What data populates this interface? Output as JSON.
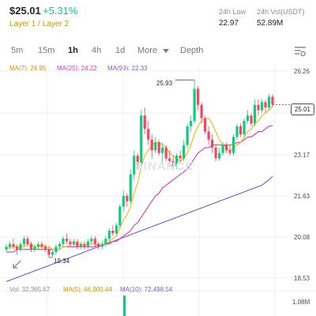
{
  "header": {
    "price": "$25.01",
    "change": "+5.31%",
    "tags": "Layer 1 / Layer 2",
    "low_label": "24h Low",
    "low_value": "22.97",
    "vol_label": "24h Vol(USDT)",
    "vol_value": "52.89M"
  },
  "tabs": {
    "items": [
      "5m",
      "15m",
      "1h",
      "4h",
      "1d",
      "More",
      "Depth"
    ],
    "active": "1h"
  },
  "ma_legend": {
    "ma7": "MA(7): 24.95",
    "ma25": "MA(25): 24.22",
    "ma99": "MA(99): 22.33"
  },
  "price_axis": [
    "26.26",
    "23.17",
    "21.63",
    "20.08",
    "18.53"
  ],
  "current_price": "25.01",
  "high_marker": "25.93",
  "low_marker": "19.34",
  "watermark": "BINANCE",
  "volume_legend": {
    "vol": "Vol: 32,365.67",
    "ma5": "MA(5): 66,900.44",
    "ma10": "MA(10): 72,498.54"
  },
  "volume_axis": "1.08M",
  "colors": {
    "up": "#0ecb81",
    "down": "#f6465d",
    "ma7": "#f0b90b",
    "ma25": "#d63bb5",
    "ma99": "#7b5cc4",
    "muted": "#848e9c"
  },
  "chart_data": {
    "type": "candlestick",
    "y_axis_ticks": [
      26.26,
      23.17,
      21.63,
      20.08,
      18.53
    ],
    "ylim": [
      18.0,
      26.6
    ],
    "candles": [
      [
        19.6,
        19.8,
        19.5,
        19.7
      ],
      [
        19.7,
        19.9,
        19.6,
        19.8
      ],
      [
        19.8,
        20.0,
        19.6,
        19.7
      ],
      [
        19.7,
        19.8,
        19.4,
        19.6
      ],
      [
        19.6,
        19.9,
        19.5,
        19.8
      ],
      [
        19.8,
        20.1,
        19.7,
        20.0
      ],
      [
        20.0,
        20.1,
        19.7,
        19.8
      ],
      [
        19.8,
        19.9,
        19.5,
        19.6
      ],
      [
        19.6,
        19.8,
        19.5,
        19.7
      ],
      [
        19.7,
        19.9,
        19.6,
        19.8
      ],
      [
        19.8,
        19.9,
        19.6,
        19.7
      ],
      [
        19.7,
        19.8,
        19.5,
        19.6
      ],
      [
        19.6,
        19.7,
        19.3,
        19.4
      ],
      [
        19.4,
        19.6,
        19.3,
        19.5
      ],
      [
        19.5,
        19.8,
        19.4,
        19.7
      ],
      [
        19.7,
        19.9,
        19.6,
        19.8
      ],
      [
        19.8,
        20.1,
        19.7,
        20.0
      ],
      [
        20.0,
        20.2,
        19.8,
        19.9
      ],
      [
        19.9,
        20.0,
        19.7,
        19.8
      ],
      [
        19.8,
        20.0,
        19.7,
        19.9
      ],
      [
        19.9,
        20.0,
        19.6,
        19.7
      ],
      [
        19.7,
        19.9,
        19.6,
        19.8
      ],
      [
        19.8,
        19.9,
        19.6,
        19.7
      ],
      [
        19.7,
        20.0,
        19.6,
        19.9
      ],
      [
        19.9,
        20.1,
        19.8,
        20.0
      ],
      [
        20.0,
        20.1,
        19.7,
        19.8
      ],
      [
        19.8,
        19.9,
        19.6,
        19.7
      ],
      [
        19.7,
        19.9,
        19.6,
        19.8
      ],
      [
        19.8,
        20.1,
        19.7,
        20.0
      ],
      [
        20.0,
        20.4,
        19.9,
        20.3
      ],
      [
        20.3,
        20.5,
        20.1,
        20.2
      ],
      [
        20.2,
        20.6,
        20.1,
        20.5
      ],
      [
        20.5,
        21.3,
        20.4,
        21.2
      ],
      [
        21.2,
        21.8,
        21.0,
        21.6
      ],
      [
        21.6,
        21.7,
        21.2,
        21.4
      ],
      [
        21.4,
        22.6,
        21.3,
        22.4
      ],
      [
        22.4,
        23.3,
        22.2,
        23.1
      ],
      [
        23.1,
        23.2,
        22.6,
        22.8
      ],
      [
        22.8,
        24.8,
        22.7,
        24.6
      ],
      [
        24.6,
        24.9,
        23.9,
        24.1
      ],
      [
        24.1,
        24.4,
        23.5,
        23.7
      ],
      [
        23.7,
        23.9,
        23.0,
        23.3
      ],
      [
        23.3,
        23.8,
        23.2,
        23.6
      ],
      [
        23.6,
        23.7,
        23.1,
        23.2
      ],
      [
        23.2,
        23.6,
        22.8,
        23.4
      ],
      [
        23.4,
        23.5,
        22.9,
        23.0
      ],
      [
        23.0,
        23.3,
        22.7,
        22.9
      ],
      [
        22.9,
        23.1,
        22.6,
        22.7
      ],
      [
        22.7,
        23.2,
        22.6,
        23.1
      ],
      [
        23.1,
        23.3,
        22.8,
        23.0
      ],
      [
        23.0,
        23.7,
        22.9,
        23.5
      ],
      [
        23.5,
        24.3,
        23.4,
        24.2
      ],
      [
        24.2,
        24.6,
        24.0,
        24.4
      ],
      [
        24.4,
        25.93,
        24.3,
        25.6
      ],
      [
        25.6,
        25.7,
        24.8,
        25.0
      ],
      [
        25.0,
        25.1,
        24.3,
        24.5
      ],
      [
        24.5,
        24.6,
        23.9,
        24.0
      ],
      [
        24.0,
        24.2,
        23.5,
        23.7
      ],
      [
        23.7,
        23.9,
        23.2,
        23.4
      ],
      [
        23.4,
        23.5,
        22.9,
        23.0
      ],
      [
        23.0,
        23.4,
        22.9,
        23.2
      ],
      [
        23.2,
        23.6,
        23.1,
        23.5
      ],
      [
        23.5,
        23.6,
        23.2,
        23.3
      ],
      [
        23.3,
        23.5,
        23.1,
        23.2
      ],
      [
        23.2,
        23.9,
        23.1,
        23.8
      ],
      [
        23.8,
        24.3,
        23.7,
        24.2
      ],
      [
        24.2,
        24.3,
        23.8,
        23.9
      ],
      [
        23.9,
        24.5,
        23.8,
        24.4
      ],
      [
        24.4,
        24.8,
        24.3,
        24.6
      ],
      [
        24.6,
        24.7,
        24.2,
        24.3
      ],
      [
        24.3,
        25.2,
        24.2,
        25.0
      ],
      [
        25.0,
        25.2,
        24.6,
        24.8
      ],
      [
        24.8,
        25.2,
        24.7,
        25.1
      ],
      [
        25.1,
        25.2,
        24.7,
        24.9
      ],
      [
        24.9,
        25.4,
        24.8,
        25.3
      ],
      [
        25.3,
        25.4,
        24.9,
        25.01
      ]
    ],
    "ma7": [
      19.6,
      19.7,
      19.7,
      19.7,
      19.7,
      19.7,
      19.8,
      19.8,
      19.7,
      19.7,
      19.7,
      19.7,
      19.7,
      19.6,
      19.6,
      19.6,
      19.7,
      19.7,
      19.8,
      19.8,
      19.8,
      19.8,
      19.8,
      19.8,
      19.8,
      19.8,
      19.8,
      19.8,
      19.8,
      19.9,
      20.0,
      20.1,
      20.4,
      20.7,
      20.9,
      21.2,
      21.7,
      22.1,
      22.7,
      23.1,
      23.3,
      23.5,
      23.6,
      23.6,
      23.5,
      23.4,
      23.2,
      23.1,
      23.0,
      22.9,
      23.0,
      23.2,
      23.5,
      23.9,
      24.2,
      24.4,
      24.5,
      24.5,
      24.3,
      24.0,
      23.7,
      23.5,
      23.4,
      23.3,
      23.4,
      23.5,
      23.6,
      23.8,
      24.0,
      24.1,
      24.3,
      24.4,
      24.6,
      24.7,
      24.8,
      24.95
    ],
    "ma25": [
      19.5,
      19.5,
      19.5,
      19.6,
      19.6,
      19.6,
      19.6,
      19.6,
      19.6,
      19.6,
      19.6,
      19.6,
      19.6,
      19.6,
      19.6,
      19.6,
      19.7,
      19.7,
      19.7,
      19.7,
      19.7,
      19.7,
      19.7,
      19.7,
      19.7,
      19.7,
      19.8,
      19.8,
      19.8,
      19.8,
      19.9,
      19.9,
      20.0,
      20.1,
      20.2,
      20.3,
      20.5,
      20.6,
      20.8,
      21.0,
      21.2,
      21.4,
      21.6,
      21.7,
      21.9,
      22.0,
      22.1,
      22.2,
      22.3,
      22.4,
      22.5,
      22.6,
      22.8,
      23.0,
      23.2,
      23.3,
      23.4,
      23.4,
      23.5,
      23.5,
      23.5,
      23.5,
      23.5,
      23.5,
      23.5,
      23.6,
      23.6,
      23.7,
      23.8,
      23.8,
      23.9,
      24.0,
      24.0,
      24.1,
      24.2,
      24.22
    ],
    "ma99": [
      18.4,
      18.45,
      18.5,
      18.55,
      18.6,
      18.65,
      18.7,
      18.75,
      18.8,
      18.85,
      18.9,
      18.95,
      19.0,
      19.05,
      19.1,
      19.15,
      19.2,
      19.25,
      19.3,
      19.35,
      19.4,
      19.45,
      19.5,
      19.55,
      19.6,
      19.65,
      19.7,
      19.75,
      19.8,
      19.85,
      19.9,
      19.95,
      20.0,
      20.05,
      20.1,
      20.15,
      20.2,
      20.25,
      20.3,
      20.35,
      20.4,
      20.45,
      20.5,
      20.55,
      20.6,
      20.65,
      20.7,
      20.75,
      20.8,
      20.85,
      20.9,
      20.95,
      21.0,
      21.05,
      21.1,
      21.15,
      21.2,
      21.25,
      21.3,
      21.35,
      21.4,
      21.45,
      21.5,
      21.55,
      21.6,
      21.65,
      21.7,
      21.75,
      21.8,
      21.85,
      21.9,
      21.95,
      22.0,
      22.1,
      22.2,
      22.33
    ]
  }
}
